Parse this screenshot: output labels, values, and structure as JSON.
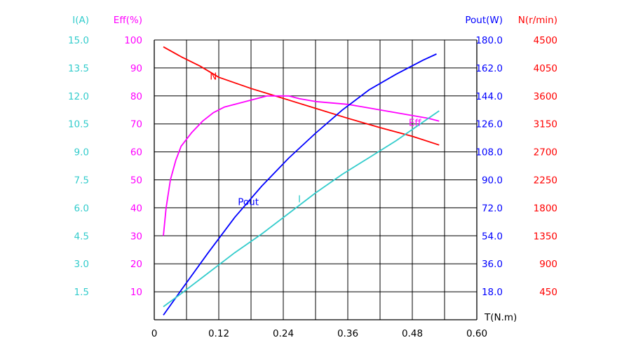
{
  "chart_data": {
    "type": "line",
    "xlabel": "T(N.m)",
    "x_ticks": [
      "0",
      "0.12",
      "0.24",
      "0.36",
      "0.48",
      "0.60"
    ],
    "xlim": [
      0,
      0.6
    ],
    "grid": true,
    "axes": [
      {
        "id": "I",
        "label": "I(A)",
        "color": "#33cccc",
        "range": [
          0,
          15
        ],
        "ticks": [
          "15.0",
          "13.5",
          "12.0",
          "10.5",
          "9.0",
          "7.5",
          "6.0",
          "4.5",
          "3.0",
          "1.5"
        ]
      },
      {
        "id": "Eff",
        "label": "Eff(%)",
        "color": "#ff00ff",
        "range": [
          0,
          100
        ],
        "ticks": [
          "100",
          "90",
          "80",
          "70",
          "60",
          "50",
          "40",
          "30",
          "20",
          "10"
        ]
      },
      {
        "id": "Pout",
        "label": "Pout(W)",
        "color": "#0000ff",
        "range": [
          0,
          180
        ],
        "ticks": [
          "180.0",
          "162.0",
          "144.0",
          "126.0",
          "108.0",
          "90.0",
          "72.0",
          "54.0",
          "36.0",
          "18.0"
        ]
      },
      {
        "id": "N",
        "label": "N(r/min)",
        "color": "#ff0000",
        "range": [
          0,
          4500
        ],
        "ticks": [
          "4500",
          "4050",
          "3600",
          "3150",
          "2700",
          "2250",
          "1800",
          "1350",
          "900",
          "450"
        ]
      }
    ],
    "series": [
      {
        "name": "N",
        "axis": "N",
        "color": "#ff0000",
        "x": [
          0.017,
          0.05,
          0.085,
          0.12,
          0.18,
          0.24,
          0.3,
          0.36,
          0.42,
          0.48,
          0.53
        ],
        "y": [
          4390,
          4230,
          4080,
          3900,
          3720,
          3560,
          3400,
          3240,
          3090,
          2950,
          2810
        ]
      },
      {
        "name": "Eff",
        "axis": "Eff",
        "color": "#ff00ff",
        "x": [
          0.017,
          0.022,
          0.03,
          0.04,
          0.05,
          0.07,
          0.09,
          0.11,
          0.13,
          0.15,
          0.17,
          0.19,
          0.21,
          0.23,
          0.25,
          0.27,
          0.3,
          0.33,
          0.36,
          0.39,
          0.42,
          0.45,
          0.48,
          0.51,
          0.53
        ],
        "y": [
          30,
          40,
          50,
          57,
          62,
          67,
          71,
          74,
          76,
          77,
          78,
          79,
          80,
          80,
          80,
          79,
          78,
          77.5,
          77,
          76,
          75,
          74,
          73,
          72,
          71
        ]
      },
      {
        "name": "Pout",
        "axis": "Pout",
        "color": "#0000ff",
        "x": [
          0.017,
          0.05,
          0.1,
          0.15,
          0.2,
          0.25,
          0.3,
          0.35,
          0.4,
          0.45,
          0.5,
          0.525
        ],
        "y": [
          3,
          19,
          43,
          66,
          86,
          104,
          120,
          135,
          148,
          158,
          167,
          171
        ]
      },
      {
        "name": "I",
        "axis": "I",
        "color": "#33cccc",
        "x": [
          0.017,
          0.05,
          0.1,
          0.15,
          0.2,
          0.25,
          0.3,
          0.35,
          0.4,
          0.45,
          0.5,
          0.53
        ],
        "y": [
          0.7,
          1.4,
          2.5,
          3.6,
          4.6,
          5.7,
          6.8,
          7.8,
          8.7,
          9.6,
          10.6,
          11.2
        ]
      }
    ]
  }
}
